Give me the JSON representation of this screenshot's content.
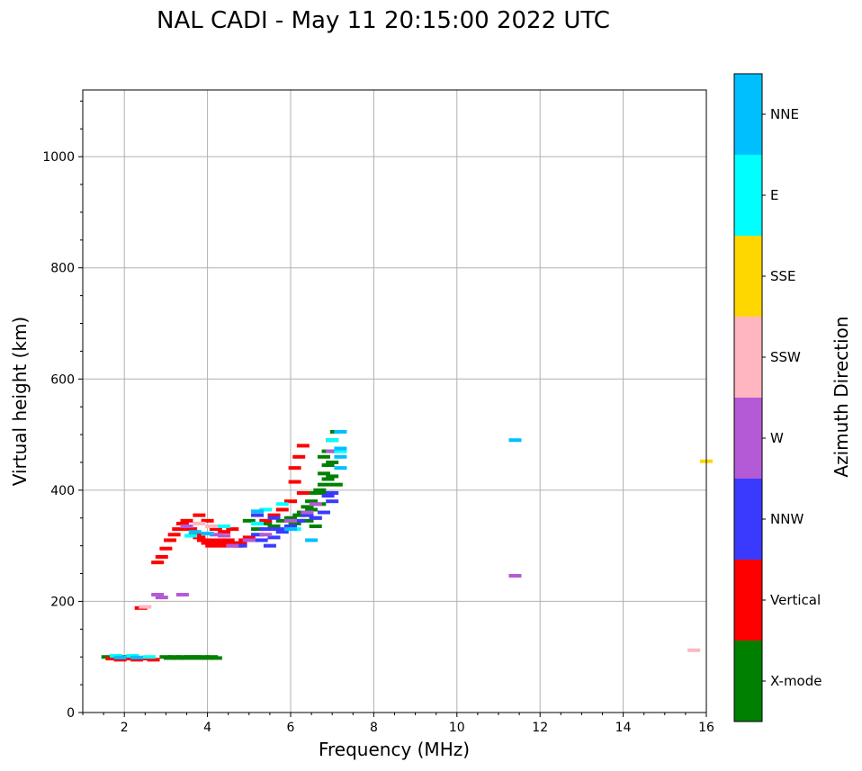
{
  "chart_data": {
    "type": "scatter",
    "title": "NAL CADI - May 11 20:15:00 2022 UTC",
    "xlabel": "Frequency (MHz)",
    "ylabel": "Virtual height (km)",
    "xlim": [
      1,
      16
    ],
    "ylim": [
      0,
      1120
    ],
    "xticks": [
      2,
      4,
      6,
      8,
      10,
      12,
      14,
      16
    ],
    "yticks": [
      0,
      200,
      400,
      600,
      800,
      1000
    ],
    "grid": true,
    "colorbar": {
      "label": "Azimuth Direction",
      "categories": [
        {
          "name": "X-mode",
          "color": "#008000"
        },
        {
          "name": "Vertical",
          "color": "#ff0000"
        },
        {
          "name": "NNW",
          "color": "#3a3aff"
        },
        {
          "name": "W",
          "color": "#b45ad6"
        },
        {
          "name": "SSW",
          "color": "#ffb6c1"
        },
        {
          "name": "SSE",
          "color": "#ffd700"
        },
        {
          "name": "E",
          "color": "#00ffff"
        },
        {
          "name": "NNE",
          "color": "#00bfff"
        }
      ]
    },
    "series": [
      {
        "name": "X-mode",
        "points": [
          [
            1.6,
            100
          ],
          [
            1.8,
            98
          ],
          [
            2.0,
            100
          ],
          [
            2.2,
            98
          ],
          [
            3.0,
            100
          ],
          [
            3.1,
            98
          ],
          [
            3.2,
            100
          ],
          [
            3.3,
            98
          ],
          [
            3.4,
            100
          ],
          [
            3.5,
            98
          ],
          [
            3.6,
            100
          ],
          [
            3.7,
            100
          ],
          [
            3.8,
            98
          ],
          [
            3.9,
            100
          ],
          [
            4.0,
            98
          ],
          [
            4.1,
            100
          ],
          [
            4.2,
            98
          ],
          [
            5.0,
            345
          ],
          [
            5.2,
            330
          ],
          [
            5.4,
            340
          ],
          [
            5.6,
            335
          ],
          [
            5.8,
            345
          ],
          [
            6.0,
            350
          ],
          [
            6.1,
            340
          ],
          [
            6.2,
            355
          ],
          [
            6.3,
            360
          ],
          [
            6.4,
            370
          ],
          [
            6.5,
            380
          ],
          [
            6.6,
            395
          ],
          [
            6.7,
            400
          ],
          [
            6.8,
            410
          ],
          [
            6.9,
            420
          ],
          [
            6.6,
            350
          ],
          [
            6.5,
            365
          ],
          [
            6.7,
            375
          ],
          [
            6.8,
            430
          ],
          [
            6.9,
            445
          ],
          [
            7.0,
            450
          ],
          [
            6.8,
            460
          ],
          [
            6.9,
            470
          ],
          [
            7.0,
            490
          ],
          [
            7.1,
            505
          ],
          [
            7.0,
            425
          ],
          [
            7.1,
            410
          ],
          [
            6.9,
            395
          ],
          [
            6.6,
            335
          ],
          [
            6.4,
            345
          ]
        ]
      },
      {
        "name": "Vertical",
        "points": [
          [
            1.7,
            97
          ],
          [
            1.9,
            95
          ],
          [
            2.1,
            97
          ],
          [
            2.3,
            95
          ],
          [
            2.5,
            97
          ],
          [
            2.7,
            95
          ],
          [
            2.4,
            188
          ],
          [
            2.8,
            270
          ],
          [
            2.9,
            280
          ],
          [
            3.0,
            295
          ],
          [
            3.1,
            310
          ],
          [
            3.2,
            320
          ],
          [
            3.3,
            330
          ],
          [
            3.4,
            340
          ],
          [
            3.5,
            345
          ],
          [
            3.6,
            330
          ],
          [
            3.7,
            320
          ],
          [
            3.8,
            315
          ],
          [
            3.9,
            310
          ],
          [
            4.0,
            305
          ],
          [
            4.1,
            300
          ],
          [
            4.2,
            310
          ],
          [
            4.3,
            305
          ],
          [
            4.4,
            300
          ],
          [
            4.5,
            310
          ],
          [
            4.6,
            305
          ],
          [
            4.7,
            300
          ],
          [
            4.8,
            305
          ],
          [
            4.9,
            310
          ],
          [
            5.0,
            315
          ],
          [
            4.2,
            330
          ],
          [
            4.4,
            325
          ],
          [
            4.6,
            330
          ],
          [
            5.4,
            345
          ],
          [
            5.6,
            355
          ],
          [
            5.8,
            365
          ],
          [
            6.0,
            380
          ],
          [
            6.1,
            415
          ],
          [
            6.1,
            440
          ],
          [
            6.2,
            460
          ],
          [
            6.3,
            480
          ],
          [
            6.3,
            395
          ],
          [
            4.0,
            345
          ],
          [
            3.8,
            355
          ]
        ]
      },
      {
        "name": "NNW",
        "points": [
          [
            4.8,
            300
          ],
          [
            5.0,
            310
          ],
          [
            5.2,
            320
          ],
          [
            5.3,
            310
          ],
          [
            5.4,
            330
          ],
          [
            5.5,
            300
          ],
          [
            5.6,
            315
          ],
          [
            5.7,
            330
          ],
          [
            5.8,
            325
          ],
          [
            6.0,
            335
          ],
          [
            6.2,
            345
          ],
          [
            6.4,
            355
          ],
          [
            6.6,
            350
          ],
          [
            6.8,
            360
          ],
          [
            7.0,
            380
          ],
          [
            6.9,
            390
          ],
          [
            7.0,
            395
          ],
          [
            5.2,
            355
          ],
          [
            5.6,
            350
          ]
        ]
      },
      {
        "name": "W",
        "points": [
          [
            2.8,
            212
          ],
          [
            2.9,
            207
          ],
          [
            3.4,
            212
          ],
          [
            4.2,
            320
          ],
          [
            4.4,
            318
          ],
          [
            4.6,
            300
          ],
          [
            5.0,
            310
          ],
          [
            5.4,
            320
          ],
          [
            6.0,
            345
          ],
          [
            6.4,
            360
          ],
          [
            6.6,
            375
          ],
          [
            7.0,
            470
          ],
          [
            11.4,
            246
          ],
          [
            3.5,
            335
          ]
        ]
      },
      {
        "name": "SSW",
        "points": [
          [
            2.5,
            190
          ],
          [
            3.8,
            340
          ],
          [
            4.1,
            335
          ],
          [
            15.7,
            112
          ]
        ]
      },
      {
        "name": "SSE",
        "points": [
          [
            16.0,
            452
          ]
        ]
      },
      {
        "name": "E",
        "points": [
          [
            1.8,
            102
          ],
          [
            2.2,
            102
          ],
          [
            2.6,
            100
          ],
          [
            3.6,
            318
          ],
          [
            4.4,
            335
          ],
          [
            5.2,
            340
          ],
          [
            5.4,
            365
          ],
          [
            5.8,
            375
          ],
          [
            6.1,
            330
          ],
          [
            7.0,
            490
          ],
          [
            7.2,
            470
          ]
        ]
      },
      {
        "name": "NNE",
        "points": [
          [
            1.9,
            99
          ],
          [
            2.3,
            99
          ],
          [
            3.7,
            325
          ],
          [
            4.0,
            322
          ],
          [
            5.2,
            362
          ],
          [
            6.0,
            330
          ],
          [
            6.5,
            310
          ],
          [
            7.2,
            440
          ],
          [
            7.2,
            460
          ],
          [
            7.2,
            475
          ],
          [
            7.2,
            505
          ],
          [
            11.4,
            490
          ]
        ]
      }
    ]
  }
}
